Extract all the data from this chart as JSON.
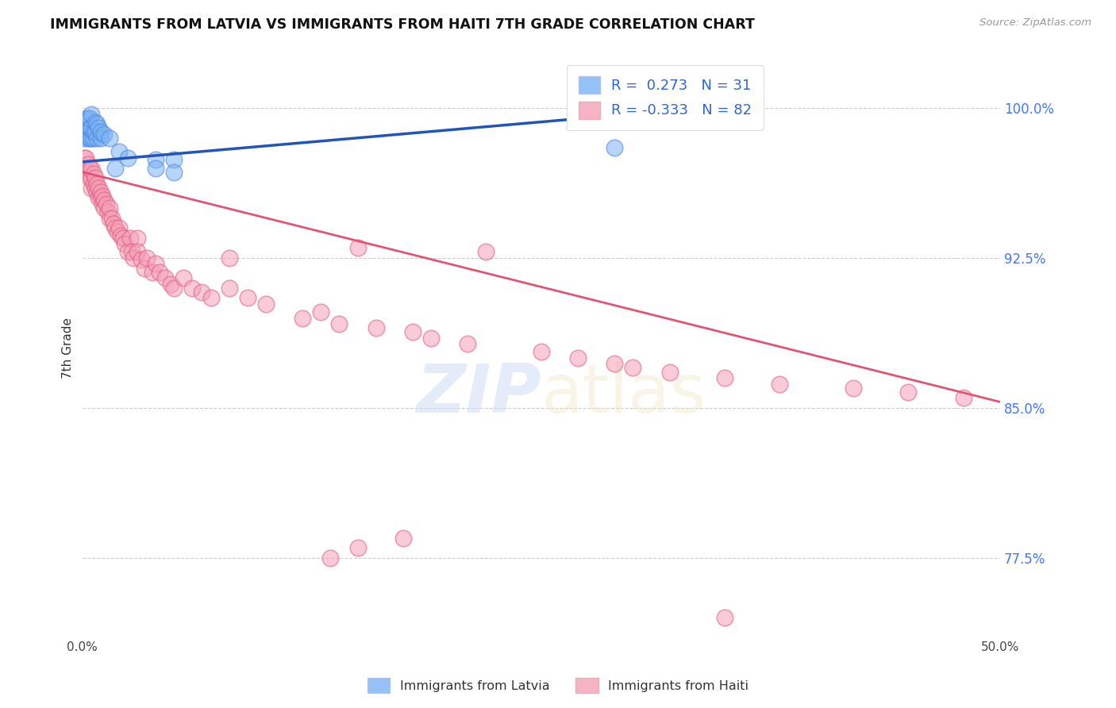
{
  "title": "IMMIGRANTS FROM LATVIA VS IMMIGRANTS FROM HAITI 7TH GRADE CORRELATION CHART",
  "source": "Source: ZipAtlas.com",
  "ylabel": "7th Grade",
  "y_ticks": [
    0.775,
    0.85,
    0.925,
    1.0
  ],
  "y_tick_labels": [
    "77.5%",
    "85.0%",
    "92.5%",
    "100.0%"
  ],
  "xlim": [
    0.0,
    0.5
  ],
  "ylim": [
    0.735,
    1.025
  ],
  "latvia_R": 0.273,
  "latvia_N": 31,
  "haiti_R": -0.333,
  "haiti_N": 82,
  "latvia_color": "#7ab3f5",
  "haiti_color": "#f5a0b8",
  "latvia_edge_color": "#5588dd",
  "haiti_edge_color": "#e06080",
  "latvia_line_color": "#2255bb",
  "haiti_line_color": "#e05575",
  "legend_label_latvia": "Immigrants from Latvia",
  "legend_label_haiti": "Immigrants from Haiti",
  "latvia_x": [
    0.001,
    0.002,
    0.002,
    0.003,
    0.003,
    0.003,
    0.004,
    0.004,
    0.004,
    0.005,
    0.005,
    0.005,
    0.006,
    0.006,
    0.007,
    0.007,
    0.008,
    0.008,
    0.009,
    0.01,
    0.01,
    0.012,
    0.015,
    0.018,
    0.02,
    0.025,
    0.04,
    0.04,
    0.05,
    0.05,
    0.29
  ],
  "latvia_y": [
    0.985,
    0.99,
    0.995,
    0.985,
    0.99,
    0.995,
    0.985,
    0.99,
    0.995,
    0.985,
    0.99,
    0.997,
    0.985,
    0.988,
    0.988,
    0.993,
    0.985,
    0.992,
    0.99,
    0.985,
    0.988,
    0.987,
    0.985,
    0.97,
    0.978,
    0.975,
    0.974,
    0.97,
    0.974,
    0.968,
    0.98
  ],
  "haiti_x": [
    0.001,
    0.002,
    0.002,
    0.003,
    0.003,
    0.004,
    0.004,
    0.005,
    0.005,
    0.005,
    0.006,
    0.006,
    0.007,
    0.007,
    0.008,
    0.008,
    0.009,
    0.009,
    0.01,
    0.01,
    0.011,
    0.011,
    0.012,
    0.012,
    0.013,
    0.014,
    0.015,
    0.015,
    0.016,
    0.017,
    0.018,
    0.019,
    0.02,
    0.021,
    0.022,
    0.023,
    0.025,
    0.026,
    0.027,
    0.028,
    0.03,
    0.03,
    0.032,
    0.034,
    0.035,
    0.038,
    0.04,
    0.042,
    0.045,
    0.048,
    0.05,
    0.055,
    0.06,
    0.065,
    0.07,
    0.08,
    0.09,
    0.1,
    0.12,
    0.13,
    0.14,
    0.15,
    0.16,
    0.18,
    0.19,
    0.21,
    0.22,
    0.25,
    0.27,
    0.29,
    0.3,
    0.32,
    0.35,
    0.38,
    0.42,
    0.45,
    0.48,
    0.135,
    0.175,
    0.08,
    0.15,
    0.35
  ],
  "haiti_y": [
    0.975,
    0.97,
    0.975,
    0.968,
    0.972,
    0.965,
    0.97,
    0.96,
    0.965,
    0.97,
    0.962,
    0.967,
    0.96,
    0.965,
    0.958,
    0.962,
    0.955,
    0.96,
    0.955,
    0.958,
    0.952,
    0.956,
    0.95,
    0.954,
    0.952,
    0.948,
    0.945,
    0.95,
    0.945,
    0.942,
    0.94,
    0.938,
    0.94,
    0.936,
    0.935,
    0.932,
    0.928,
    0.935,
    0.928,
    0.925,
    0.935,
    0.928,
    0.924,
    0.92,
    0.925,
    0.918,
    0.922,
    0.918,
    0.915,
    0.912,
    0.91,
    0.915,
    0.91,
    0.908,
    0.905,
    0.91,
    0.905,
    0.902,
    0.895,
    0.898,
    0.892,
    0.93,
    0.89,
    0.888,
    0.885,
    0.882,
    0.928,
    0.878,
    0.875,
    0.872,
    0.87,
    0.868,
    0.865,
    0.862,
    0.86,
    0.858,
    0.855,
    0.775,
    0.785,
    0.925,
    0.78,
    0.745
  ],
  "haiti_line_x0": 0.0,
  "haiti_line_x1": 0.5,
  "haiti_line_y0": 0.968,
  "haiti_line_y1": 0.853,
  "latvia_line_x0": 0.0,
  "latvia_line_x1": 0.3,
  "latvia_line_y0": 0.973,
  "latvia_line_y1": 0.997
}
